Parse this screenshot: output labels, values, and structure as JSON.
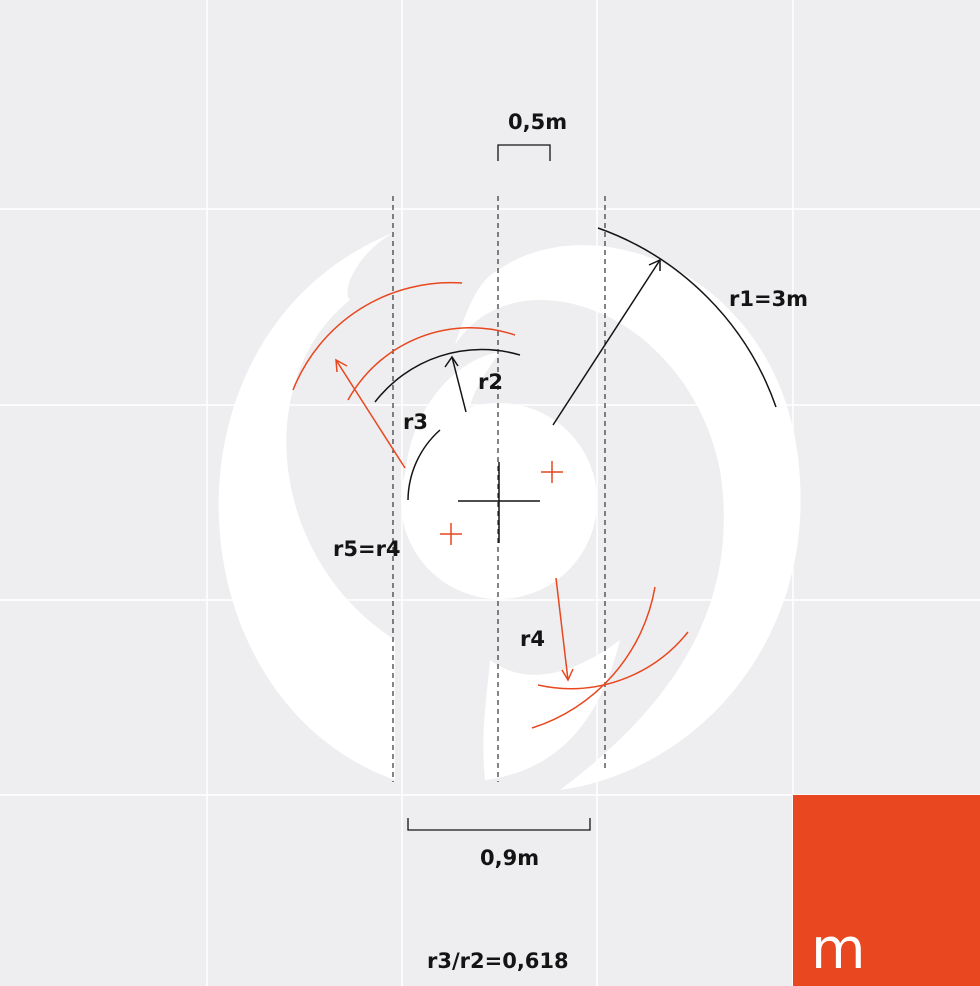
{
  "labels": {
    "dim_top": "0,5m",
    "r1": "r1=3m",
    "r2": "r2",
    "r3": "r3",
    "r5_r4": "r5=r4",
    "r4": "r4",
    "dim_bottom": "0,9m",
    "ratio": "r3/r2=0,618"
  },
  "brand": {
    "letter": "m",
    "color": "#e8471f"
  },
  "colors": {
    "background": "#eeeef0",
    "grid": "#ffffff",
    "logo": "#ffffff",
    "construction_black": "#141414",
    "construction_red": "#e8471f"
  }
}
